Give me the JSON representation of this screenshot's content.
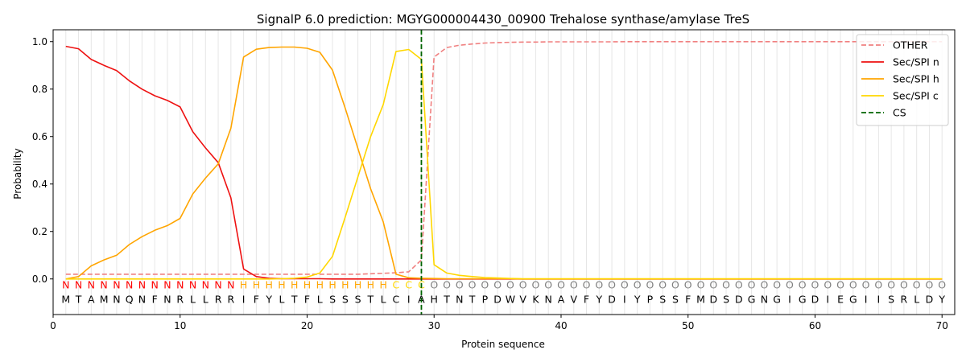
{
  "chart_data": {
    "type": "line",
    "title": "SignalP 6.0 prediction: MGYG000004430_00900 Trehalose synthase/amylase TreS",
    "xlabel": "Protein sequence",
    "ylabel": "Probability",
    "xlim": [
      0,
      71
    ],
    "ylim": [
      -0.15,
      1.05
    ],
    "x_ticks": [
      0,
      10,
      20,
      30,
      40,
      50,
      60,
      70
    ],
    "y_ticks": [
      0.0,
      0.2,
      0.4,
      0.6,
      0.8,
      1.0
    ],
    "x_tick_labels": [
      "0",
      "10",
      "20",
      "30",
      "40",
      "50",
      "60",
      "70"
    ],
    "y_tick_labels": [
      "0.0",
      "0.2",
      "0.4",
      "0.6",
      "0.8",
      "1.0"
    ],
    "grid": "vertical lines at each residue position",
    "legend_position": "top-right",
    "sequence": [
      "M",
      "T",
      "A",
      "M",
      "N",
      "Q",
      "N",
      "F",
      "N",
      "R",
      "L",
      "L",
      "R",
      "R",
      "I",
      "F",
      "Y",
      "L",
      "T",
      "F",
      "L",
      "S",
      "S",
      "S",
      "T",
      "L",
      "C",
      "I",
      "A",
      "H",
      "T",
      "N",
      "T",
      "P",
      "D",
      "W",
      "V",
      "K",
      "N",
      "A",
      "V",
      "F",
      "Y",
      "D",
      "I",
      "Y",
      "P",
      "S",
      "S",
      "F",
      "M",
      "D",
      "S",
      "D",
      "G",
      "N",
      "G",
      "I",
      "G",
      "D",
      "I",
      "E",
      "G",
      "I",
      "I",
      "S",
      "R",
      "L",
      "D",
      "Y"
    ],
    "labels": [
      "N",
      "N",
      "N",
      "N",
      "N",
      "N",
      "N",
      "N",
      "N",
      "N",
      "N",
      "N",
      "N",
      "N",
      "H",
      "H",
      "H",
      "H",
      "H",
      "H",
      "H",
      "H",
      "H",
      "H",
      "H",
      "H",
      "C",
      "C",
      "C",
      "O",
      "O",
      "O",
      "O",
      "O",
      "O",
      "O",
      "O",
      "O",
      "O",
      "O",
      "O",
      "O",
      "O",
      "O",
      "O",
      "O",
      "O",
      "O",
      "O",
      "O",
      "O",
      "O",
      "O",
      "O",
      "O",
      "O",
      "O",
      "O",
      "O",
      "O",
      "O",
      "O",
      "O",
      "O",
      "O",
      "O",
      "O",
      "O",
      "O",
      "O"
    ],
    "label_colors": {
      "N": "#ff0000",
      "H": "#ffa500",
      "C": "#ffd700",
      "O": "#808080"
    },
    "x": [
      1,
      2,
      3,
      4,
      5,
      6,
      7,
      8,
      9,
      10,
      11,
      12,
      13,
      14,
      15,
      16,
      17,
      18,
      19,
      20,
      21,
      22,
      23,
      24,
      25,
      26,
      27,
      28,
      29,
      30,
      31,
      32,
      33,
      34,
      35,
      36,
      37,
      38,
      39,
      40,
      41,
      42,
      43,
      44,
      45,
      46,
      47,
      48,
      49,
      50,
      51,
      52,
      53,
      54,
      55,
      56,
      57,
      58,
      59,
      60,
      61,
      62,
      63,
      64,
      65,
      66,
      67,
      68,
      69,
      70
    ],
    "series": [
      {
        "name": "OTHER",
        "color": "#f08080",
        "style": "dashed",
        "values": [
          0.02,
          0.02,
          0.02,
          0.02,
          0.02,
          0.02,
          0.02,
          0.02,
          0.02,
          0.02,
          0.02,
          0.02,
          0.02,
          0.02,
          0.02,
          0.02,
          0.02,
          0.02,
          0.02,
          0.02,
          0.02,
          0.02,
          0.02,
          0.02,
          0.022,
          0.024,
          0.026,
          0.03,
          0.08,
          0.935,
          0.975,
          0.985,
          0.99,
          0.994,
          0.996,
          0.997,
          0.998,
          0.998,
          0.999,
          0.999,
          0.999,
          0.999,
          0.999,
          0.999,
          1.0,
          1.0,
          1.0,
          1.0,
          1.0,
          1.0,
          1.0,
          1.0,
          1.0,
          1.0,
          1.0,
          1.0,
          1.0,
          1.0,
          1.0,
          1.0,
          1.0,
          1.0,
          1.0,
          1.0,
          1.0,
          1.0,
          1.0,
          1.0,
          1.0,
          1.0
        ]
      },
      {
        "name": "Sec/SPI n",
        "color": "#ee1111",
        "style": "solid",
        "values": [
          0.98,
          0.97,
          0.925,
          0.9,
          0.878,
          0.835,
          0.8,
          0.772,
          0.752,
          0.725,
          0.62,
          0.552,
          0.49,
          0.342,
          0.042,
          0.01,
          0.003,
          0.001,
          0.001,
          0.001,
          0.001,
          0.0,
          0.0,
          0.0,
          0.0,
          0.0,
          0.0,
          0.0,
          0.0,
          0.0,
          0.0,
          0.0,
          0.0,
          0.0,
          0.0,
          0.0,
          0.0,
          0.0,
          0.0,
          0.0,
          0.0,
          0.0,
          0.0,
          0.0,
          0.0,
          0.0,
          0.0,
          0.0,
          0.0,
          0.0,
          0.0,
          0.0,
          0.0,
          0.0,
          0.0,
          0.0,
          0.0,
          0.0,
          0.0,
          0.0,
          0.0,
          0.0,
          0.0,
          0.0,
          0.0,
          0.0,
          0.0,
          0.0,
          0.0,
          0.0
        ]
      },
      {
        "name": "Sec/SPI h",
        "color": "#ffa500",
        "style": "solid",
        "values": [
          0.0,
          0.01,
          0.055,
          0.08,
          0.1,
          0.145,
          0.178,
          0.205,
          0.225,
          0.255,
          0.358,
          0.425,
          0.485,
          0.635,
          0.935,
          0.968,
          0.975,
          0.977,
          0.977,
          0.972,
          0.955,
          0.88,
          0.72,
          0.55,
          0.38,
          0.24,
          0.02,
          0.005,
          0.003,
          0.002,
          0.001,
          0.001,
          0.001,
          0.001,
          0.001,
          0.001,
          0.0,
          0.0,
          0.0,
          0.0,
          0.0,
          0.0,
          0.0,
          0.0,
          0.0,
          0.0,
          0.0,
          0.0,
          0.0,
          0.0,
          0.0,
          0.0,
          0.0,
          0.0,
          0.0,
          0.0,
          0.0,
          0.0,
          0.0,
          0.0,
          0.0,
          0.0,
          0.0,
          0.0,
          0.0,
          0.0,
          0.0,
          0.0,
          0.0,
          0.0
        ]
      },
      {
        "name": "Sec/SPI c",
        "color": "#ffd700",
        "style": "solid",
        "values": [
          0.0,
          0.0,
          0.0,
          0.0,
          0.0,
          0.0,
          0.0,
          0.0,
          0.0,
          0.0,
          0.0,
          0.0,
          0.0,
          0.0,
          0.0,
          0.0,
          0.0,
          0.001,
          0.003,
          0.008,
          0.025,
          0.095,
          0.26,
          0.43,
          0.6,
          0.735,
          0.958,
          0.967,
          0.925,
          0.06,
          0.025,
          0.015,
          0.01,
          0.006,
          0.004,
          0.002,
          0.001,
          0.001,
          0.001,
          0.001,
          0.001,
          0.001,
          0.001,
          0.001,
          0.001,
          0.001,
          0.001,
          0.001,
          0.001,
          0.001,
          0.001,
          0.001,
          0.001,
          0.001,
          0.001,
          0.001,
          0.001,
          0.001,
          0.001,
          0.001,
          0.001,
          0.001,
          0.001,
          0.001,
          0.001,
          0.001,
          0.001,
          0.001,
          0.001,
          0.001
        ]
      }
    ],
    "cleavage_site": {
      "name": "CS",
      "x": 29,
      "color": "#006400",
      "style": "dashed"
    }
  }
}
